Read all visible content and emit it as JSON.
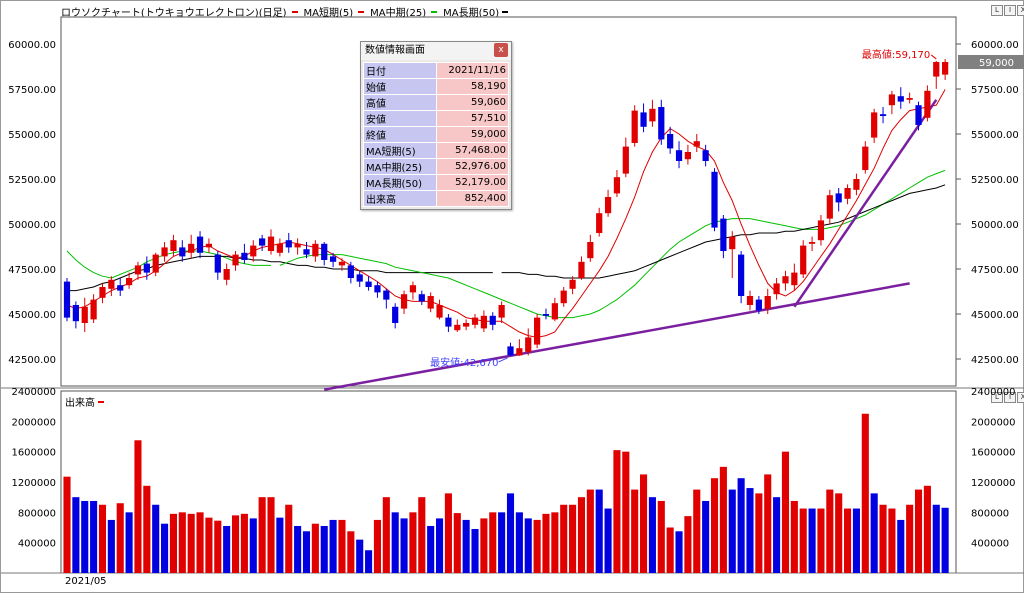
{
  "window": {
    "title": "ロウソクチャート(トウキョウエレクトロン)(日足)",
    "window_buttons": [
      "L",
      "I",
      "X"
    ]
  },
  "legend": [
    {
      "label": "MA短期(5)",
      "color": "#e00000"
    },
    {
      "label": "MA中期(25)",
      "color": "#00c000"
    },
    {
      "label": "MA長期(50)",
      "color": "#000000"
    }
  ],
  "colors": {
    "up": "#e00000",
    "down": "#0000e0",
    "trend": "#7a1fa0",
    "ma5": "#e00000",
    "ma25": "#00c000",
    "ma50": "#000000"
  },
  "info_panel": {
    "title": "数値情報画面",
    "close": "x",
    "rows": [
      {
        "key": "日付",
        "value": "2021/11/16"
      },
      {
        "key": "始値",
        "value": "58,190"
      },
      {
        "key": "高値",
        "value": "59,060"
      },
      {
        "key": "安値",
        "value": "57,510"
      },
      {
        "key": "終値",
        "value": "59,000"
      },
      {
        "key": "MA短期(5)",
        "value": "57,468.00"
      },
      {
        "key": "MA中期(25)",
        "value": "52,976.00"
      },
      {
        "key": "MA長期(50)",
        "value": "52,179.00"
      },
      {
        "key": "出来高",
        "value": "852,400"
      }
    ]
  },
  "volume_label": "出来高",
  "date_label": "2021/05",
  "chart_data": {
    "type": "candlestick",
    "price_axis": {
      "ylim": [
        41000,
        61500
      ],
      "ticks": [
        42500,
        45000,
        47500,
        50000,
        52500,
        55000,
        57500,
        60000
      ],
      "tick_labels": [
        "42500.00",
        "45000.00",
        "47500.00",
        "50000.00",
        "52500.00",
        "55000.00",
        "57500.00",
        "60000.00"
      ]
    },
    "right_ticks": [
      42500,
      45000,
      47500,
      50000,
      52500,
      55000,
      57500,
      60000
    ],
    "right_tick_labels": [
      "42500.00",
      "45000.00",
      "47500.00",
      "50000.00",
      "52500.00",
      "55000.00",
      "57500.00",
      "60000.00"
    ],
    "last_price_label": "59,000",
    "last_price": 59000,
    "annotations": [
      {
        "text": "最高値:59,170",
        "index": 98,
        "value": 59170,
        "color": "#e00000"
      },
      {
        "text": "最安値:42,670",
        "index": 50,
        "value": 42670,
        "color": "#4040ff"
      }
    ],
    "candles": [
      [
        46800,
        44800,
        47000,
        44600
      ],
      [
        45500,
        44600,
        45700,
        44200
      ],
      [
        44500,
        45400,
        45900,
        44000
      ],
      [
        44700,
        45800,
        46100,
        44500
      ],
      [
        45900,
        46500,
        46700,
        45600
      ],
      [
        46400,
        46900,
        47100,
        46000
      ],
      [
        46600,
        46300,
        47000,
        46000
      ],
      [
        46600,
        47000,
        47300,
        46400
      ],
      [
        47200,
        47700,
        47900,
        46900
      ],
      [
        47800,
        47300,
        48200,
        46900
      ],
      [
        47300,
        48300,
        48400,
        47100
      ],
      [
        48200,
        48700,
        49000,
        47900
      ],
      [
        48500,
        49100,
        49400,
        48200
      ],
      [
        48700,
        48200,
        49100,
        47900
      ],
      [
        48400,
        48900,
        49400,
        48100
      ],
      [
        49300,
        48400,
        49600,
        48100
      ],
      [
        48700,
        48900,
        49200,
        48400
      ],
      [
        48300,
        47300,
        48500,
        46900
      ],
      [
        46900,
        47500,
        47800,
        46600
      ],
      [
        47700,
        48300,
        48500,
        47400
      ],
      [
        48400,
        48000,
        48900,
        47800
      ],
      [
        48200,
        48800,
        49100,
        47900
      ],
      [
        49200,
        48800,
        49400,
        48500
      ],
      [
        48500,
        49300,
        49700,
        48300
      ],
      [
        48400,
        48900,
        49200,
        48200
      ],
      [
        49100,
        48700,
        49500,
        48400
      ],
      [
        48700,
        48900,
        49200,
        48300
      ],
      [
        48600,
        48300,
        49000,
        48100
      ],
      [
        48200,
        48900,
        49100,
        47900
      ],
      [
        48900,
        48000,
        49000,
        47700
      ],
      [
        48200,
        47900,
        48400,
        47600
      ],
      [
        47700,
        47900,
        48100,
        47400
      ],
      [
        47700,
        47000,
        47900,
        46700
      ],
      [
        47200,
        46800,
        47400,
        46500
      ],
      [
        46800,
        46500,
        47100,
        46300
      ],
      [
        46600,
        46200,
        46800,
        45900
      ],
      [
        46300,
        45800,
        46400,
        45300
      ],
      [
        45400,
        44500,
        45600,
        44200
      ],
      [
        45300,
        46100,
        46300,
        45000
      ],
      [
        46200,
        46600,
        46800,
        45800
      ],
      [
        46100,
        45700,
        46300,
        45500
      ],
      [
        45300,
        46000,
        46200,
        45100
      ],
      [
        44800,
        45500,
        45800,
        44700
      ],
      [
        44800,
        44300,
        45000,
        44000
      ],
      [
        44100,
        44400,
        44700,
        44000
      ],
      [
        44300,
        44500,
        44700,
        44100
      ],
      [
        44400,
        44800,
        45000,
        44200
      ],
      [
        44200,
        44900,
        45200,
        44000
      ],
      [
        44900,
        44400,
        45100,
        44100
      ],
      [
        44800,
        45500,
        45700,
        44500
      ],
      [
        43200,
        42700,
        43400,
        42670
      ],
      [
        42700,
        43100,
        43600,
        42670
      ],
      [
        42900,
        43700,
        44200,
        42700
      ],
      [
        43300,
        44800,
        45000,
        43100
      ],
      [
        45000,
        44900,
        45300,
        44700
      ],
      [
        44700,
        45600,
        45900,
        44600
      ],
      [
        45600,
        46300,
        46500,
        45400
      ],
      [
        46400,
        46900,
        47100,
        46100
      ],
      [
        47000,
        47900,
        48200,
        46900
      ],
      [
        48100,
        49000,
        49400,
        47900
      ],
      [
        49500,
        50600,
        50900,
        49300
      ],
      [
        50600,
        51500,
        51900,
        50400
      ],
      [
        51700,
        52600,
        53000,
        51500
      ],
      [
        52800,
        54300,
        54800,
        52600
      ],
      [
        54500,
        56300,
        56600,
        54300
      ],
      [
        56200,
        55400,
        56700,
        55100
      ],
      [
        55700,
        56400,
        56900,
        55400
      ],
      [
        56500,
        54700,
        56900,
        54400
      ],
      [
        55000,
        54200,
        55400,
        53900
      ],
      [
        54100,
        53500,
        54600,
        53100
      ],
      [
        53600,
        54000,
        54400,
        53300
      ],
      [
        54300,
        54600,
        55000,
        54000
      ],
      [
        54100,
        53500,
        54400,
        53200
      ],
      [
        52900,
        49800,
        53100,
        49600
      ],
      [
        50300,
        48500,
        50500,
        48100
      ],
      [
        48600,
        49300,
        49600,
        47000
      ],
      [
        48300,
        46000,
        48500,
        45600
      ],
      [
        45500,
        46000,
        46300,
        45200
      ],
      [
        45800,
        45200,
        46000,
        45000
      ],
      [
        45300,
        46000,
        46400,
        45000
      ],
      [
        46100,
        46700,
        47000,
        45800
      ],
      [
        46700,
        47100,
        47400,
        46300
      ],
      [
        46600,
        47300,
        47800,
        46300
      ],
      [
        47200,
        48800,
        49100,
        47000
      ],
      [
        48900,
        49000,
        49300,
        48500
      ],
      [
        49100,
        50200,
        50500,
        48800
      ],
      [
        50300,
        51600,
        51900,
        50000
      ],
      [
        51700,
        51200,
        52000,
        50700
      ],
      [
        51400,
        52000,
        52200,
        51100
      ],
      [
        51900,
        52500,
        52800,
        51600
      ],
      [
        53000,
        54300,
        54600,
        52800
      ],
      [
        54800,
        56200,
        56400,
        54500
      ],
      [
        56100,
        56000,
        56500,
        55600
      ],
      [
        56600,
        57200,
        57400,
        56100
      ],
      [
        57100,
        56800,
        57600,
        56400
      ],
      [
        56900,
        57000,
        57300,
        56700
      ],
      [
        56600,
        55500,
        56800,
        55200
      ],
      [
        55900,
        57400,
        57700,
        55700
      ],
      [
        58190,
        59000,
        59060,
        57510
      ],
      [
        58300,
        59000,
        59170,
        58000
      ]
    ],
    "ma5": [
      45500,
      45300,
      45400,
      45700,
      46000,
      46300,
      46500,
      46700,
      47000,
      47100,
      47400,
      47800,
      48200,
      48400,
      48500,
      48700,
      48800,
      48500,
      48300,
      48100,
      48200,
      48500,
      48700,
      48800,
      48900,
      49000,
      48900,
      48800,
      48700,
      48600,
      48300,
      48000,
      47700,
      47400,
      47100,
      46800,
      46400,
      46000,
      45800,
      45700,
      45700,
      45700,
      45500,
      45300,
      45100,
      44800,
      44700,
      44600,
      44600,
      44600,
      44300,
      44000,
      43800,
      43700,
      43800,
      44000,
      44700,
      45300,
      46000,
      46700,
      47400,
      48200,
      49200,
      50300,
      51500,
      52900,
      54000,
      54800,
      55300,
      55000,
      54600,
      54300,
      54100,
      53500,
      52300,
      51300,
      50000,
      48800,
      47700,
      46700,
      46200,
      46000,
      46300,
      46800,
      47500,
      48200,
      48900,
      49700,
      50500,
      51300,
      52200,
      53100,
      54200,
      55200,
      55800,
      56300,
      56400,
      56500,
      56600,
      57470
    ],
    "ma25": [
      null,
      null,
      null,
      null,
      null,
      null,
      null,
      null,
      null,
      null,
      null,
      null,
      null,
      null,
      null,
      null,
      null,
      null,
      null,
      null,
      null,
      null,
      null,
      null,
      47700,
      47900,
      48100,
      48200,
      48300,
      48300,
      48300,
      48300,
      48200,
      48100,
      48000,
      47900,
      47800,
      47600,
      47500,
      47400,
      47300,
      47200,
      47100,
      47000,
      46800,
      46600,
      46400,
      46200,
      46000,
      45800,
      45600,
      45400,
      45200,
      45000,
      44900,
      44800,
      44800,
      44800,
      44900,
      45000,
      45200,
      45500,
      45800,
      46200,
      46600,
      47100,
      47600,
      48100,
      48600,
      49000,
      49300,
      49600,
      49900,
      50100,
      50200,
      50300,
      50300,
      50300,
      50200,
      50100,
      50000,
      49900,
      49800,
      49700,
      49700,
      49700,
      49800,
      49900,
      50100,
      50300,
      50500,
      50800,
      51100,
      51400,
      51700,
      52000,
      52300,
      52600,
      52800,
      52976
    ],
    "ma50": [
      null,
      null,
      null,
      null,
      null,
      null,
      null,
      null,
      null,
      null,
      null,
      null,
      null,
      null,
      null,
      null,
      null,
      null,
      null,
      null,
      null,
      null,
      null,
      null,
      null,
      null,
      null,
      null,
      null,
      null,
      null,
      null,
      null,
      null,
      null,
      null,
      null,
      null,
      null,
      null,
      null,
      null,
      null,
      null,
      null,
      null,
      null,
      null,
      null,
      47300,
      47300,
      47300,
      47200,
      47200,
      47100,
      47100,
      47000,
      47000,
      47000,
      47000,
      47000,
      47100,
      47200,
      47300,
      47400,
      47600,
      47800,
      48000,
      48200,
      48400,
      48600,
      48800,
      49000,
      49100,
      49200,
      49300,
      49400,
      49400,
      49500,
      49500,
      49500,
      49600,
      49600,
      49700,
      49800,
      49900,
      50000,
      50100,
      50300,
      50500,
      50700,
      50900,
      51100,
      51300,
      51500,
      51700,
      51800,
      51900,
      52000,
      52179
    ],
    "ma25_left": [
      48500,
      48000,
      47600,
      47300,
      47100,
      47000,
      47200,
      47400,
      47600,
      47900,
      48100,
      48300,
      48400,
      48500,
      48500,
      48500,
      48400,
      48300,
      48100,
      47900,
      47800,
      47700,
      47700,
      47700
    ],
    "ma50_left": [
      46300,
      46300,
      46400,
      46500,
      46700,
      46800,
      47000,
      47200,
      47400,
      47500,
      47700,
      47800,
      47900,
      48000,
      48100,
      48200,
      48200,
      48200,
      48200,
      48100,
      48100,
      48000,
      48000,
      47900,
      47900,
      47800,
      47700,
      47700,
      47600,
      47600,
      47500,
      47500,
      47500,
      47400,
      47400,
      47400,
      47300,
      47300,
      47300,
      47300,
      47300,
      47300,
      47300,
      47300,
      47300,
      47300,
      47300,
      47300,
      47300
    ],
    "trendlines": [
      {
        "from": {
          "index": 29,
          "value": 40800
        },
        "to": {
          "index": 95,
          "value": 46700
        }
      },
      {
        "from": {
          "index": 82,
          "value": 45400
        },
        "to": {
          "index": 98,
          "value": 56900
        }
      }
    ],
    "volume_axis": {
      "ylim": [
        0,
        2400000
      ],
      "ticks": [
        400000,
        800000,
        1200000,
        1600000,
        2000000,
        2400000
      ],
      "tick_labels": [
        "400000",
        "800000",
        "1200000",
        "1600000",
        "2000000",
        "2400000"
      ]
    },
    "volume": [
      1270000,
      1000000,
      950000,
      950000,
      900000,
      700000,
      920000,
      800000,
      1750000,
      1150000,
      900000,
      650000,
      780000,
      800000,
      780000,
      800000,
      730000,
      690000,
      620000,
      760000,
      780000,
      720000,
      1000000,
      1000000,
      730000,
      900000,
      620000,
      550000,
      650000,
      620000,
      700000,
      700000,
      550000,
      440000,
      300000,
      700000,
      1000000,
      800000,
      720000,
      800000,
      1000000,
      620000,
      720000,
      1050000,
      790000,
      700000,
      580000,
      720000,
      800000,
      800000,
      1050000,
      800000,
      720000,
      700000,
      780000,
      800000,
      900000,
      900000,
      1000000,
      1100000,
      1100000,
      850000,
      1620000,
      1600000,
      1100000,
      1300000,
      1000000,
      950000,
      600000,
      550000,
      750000,
      1100000,
      950000,
      1250000,
      1400000,
      1100000,
      1250000,
      1120000,
      1050000,
      1300000,
      1000000,
      1600000,
      950000,
      850000,
      850000,
      850000,
      1100000,
      1050000,
      850000,
      850000,
      2100000,
      1050000,
      900000,
      850000,
      700000,
      900000,
      1100000,
      1150000,
      900000,
      860000
    ],
    "volume_direction": [
      "u",
      "d",
      "d",
      "d",
      "u",
      "d",
      "u",
      "d",
      "u",
      "u",
      "d",
      "d",
      "u",
      "u",
      "u",
      "u",
      "u",
      "u",
      "d",
      "u",
      "u",
      "d",
      "u",
      "u",
      "d",
      "u",
      "d",
      "d",
      "u",
      "d",
      "d",
      "u",
      "u",
      "d",
      "d",
      "u",
      "u",
      "d",
      "d",
      "u",
      "u",
      "d",
      "d",
      "u",
      "u",
      "d",
      "d",
      "u",
      "u",
      "d",
      "d",
      "d",
      "d",
      "u",
      "u",
      "u",
      "u",
      "u",
      "u",
      "u",
      "d",
      "d",
      "u",
      "u",
      "u",
      "u",
      "d",
      "u",
      "u",
      "d",
      "u",
      "u",
      "d",
      "u",
      "u",
      "d",
      "d",
      "d",
      "u",
      "u",
      "d",
      "u",
      "u",
      "u",
      "d",
      "u",
      "u",
      "u",
      "u",
      "d",
      "u",
      "d",
      "u",
      "u",
      "d",
      "u",
      "u",
      "u",
      "d",
      "d"
    ]
  }
}
